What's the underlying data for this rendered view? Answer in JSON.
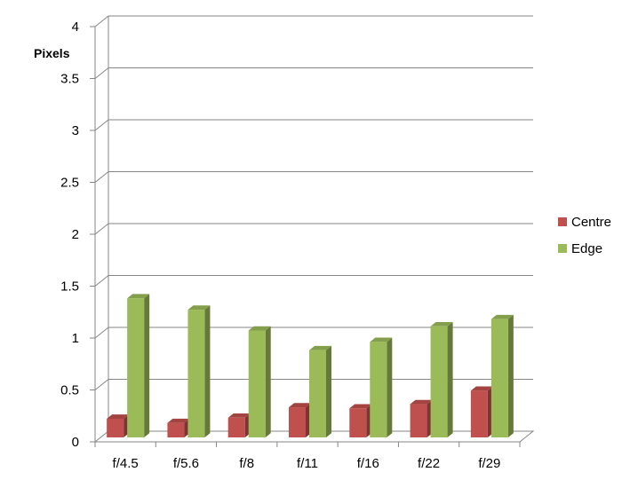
{
  "chart_data": {
    "type": "bar",
    "title": "",
    "xlabel": "",
    "ylabel": "Pixels",
    "ylim": [
      0,
      4
    ],
    "yticks": [
      "0",
      "0.5",
      "1",
      "1.5",
      "2",
      "2.5",
      "3",
      "3.5",
      "4"
    ],
    "grid": true,
    "legend_position": "right",
    "categories": [
      "f/4.5",
      "f/5.6",
      "f/8",
      "f/11",
      "f/16",
      "f/22",
      "f/29"
    ],
    "series": [
      {
        "name": "Centre",
        "color": "#c0504d",
        "values": [
          0.18,
          0.14,
          0.19,
          0.29,
          0.28,
          0.32,
          0.45
        ]
      },
      {
        "name": "Edge",
        "color": "#9bbb59",
        "values": [
          1.34,
          1.23,
          1.03,
          0.84,
          0.92,
          1.07,
          1.14
        ]
      }
    ]
  }
}
